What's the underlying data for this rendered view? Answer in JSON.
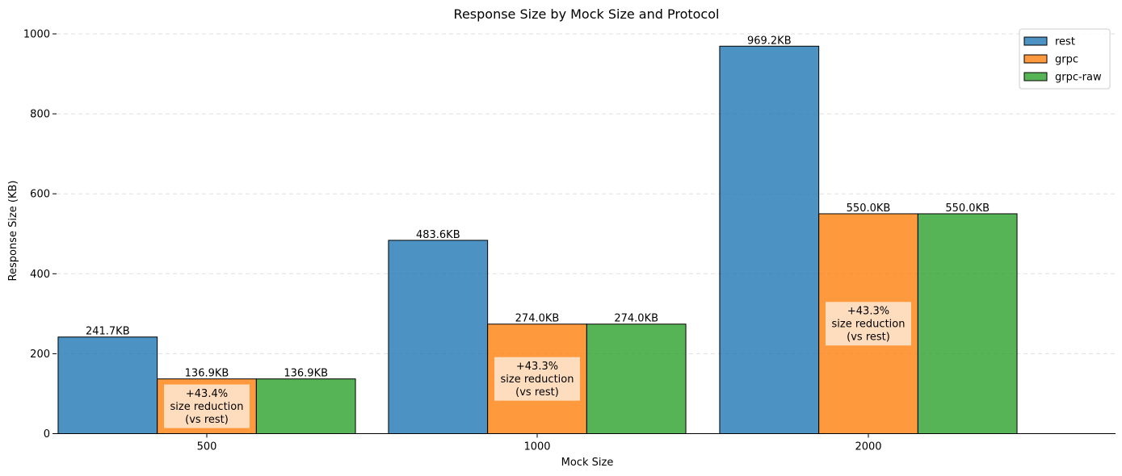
{
  "chart_data": {
    "type": "bar",
    "title": "Response Size by Mock Size and Protocol",
    "xlabel": "Mock Size",
    "ylabel": "Response Size (KB)",
    "categories": [
      "500",
      "1000",
      "2000"
    ],
    "ylim": [
      0,
      1000
    ],
    "yticks": [
      0,
      200,
      400,
      600,
      800,
      1000
    ],
    "grid": "y-dashed",
    "legend_position": "top-right",
    "series": [
      {
        "name": "rest",
        "color": "#1f77b4",
        "values": [
          241.7,
          483.6,
          969.2
        ],
        "labels": [
          "241.7KB",
          "483.6KB",
          "969.2KB"
        ]
      },
      {
        "name": "grpc",
        "color": "#ff7f0e",
        "values": [
          136.9,
          274.0,
          550.0
        ],
        "labels": [
          "136.9KB",
          "274.0KB",
          "550.0KB"
        ]
      },
      {
        "name": "grpc-raw",
        "color": "#2ca02c",
        "values": [
          136.9,
          274.0,
          550.0
        ],
        "labels": [
          "136.9KB",
          "274.0KB",
          "550.0KB"
        ]
      }
    ],
    "annotations": [
      {
        "category": "500",
        "series": "grpc",
        "lines": [
          "+43.4%",
          "size reduction",
          "(vs rest)"
        ]
      },
      {
        "category": "1000",
        "series": "grpc",
        "lines": [
          "+43.3%",
          "size reduction",
          "(vs rest)"
        ]
      },
      {
        "category": "2000",
        "series": "grpc",
        "lines": [
          "+43.3%",
          "size reduction",
          "(vs rest)"
        ]
      }
    ]
  }
}
